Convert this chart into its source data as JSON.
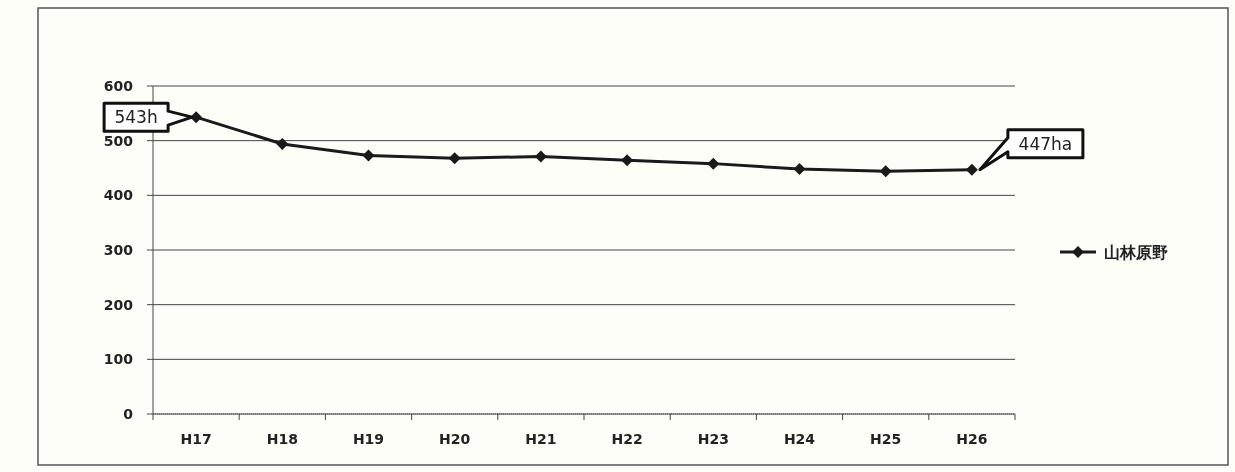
{
  "chart_data": {
    "type": "line",
    "categories": [
      "H17",
      "H18",
      "H19",
      "H20",
      "H21",
      "H22",
      "H23",
      "H24",
      "H25",
      "H26"
    ],
    "series": [
      {
        "name": "山林原野",
        "color": "#1a1a1a",
        "values": [
          543,
          494,
          473,
          468,
          471,
          464,
          458,
          448,
          444,
          447
        ]
      }
    ],
    "ylim": [
      0,
      600
    ],
    "yticks": [
      0,
      100,
      200,
      300,
      400,
      500,
      600
    ],
    "grid": "y",
    "legend": "right",
    "marker": "diamond",
    "annotations": [
      {
        "text": "543h",
        "x": "H17",
        "y": 543
      },
      {
        "text": "447ha",
        "x": "H26",
        "y": 447
      }
    ]
  }
}
